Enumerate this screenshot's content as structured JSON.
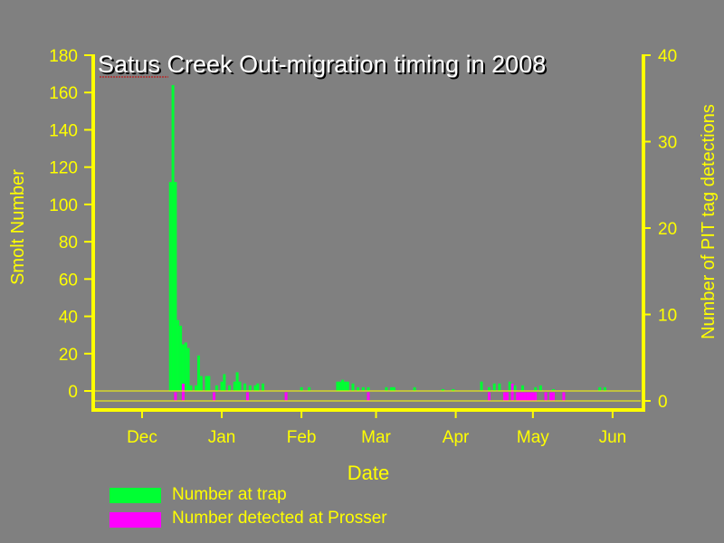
{
  "colors": {
    "background": "#808080",
    "axis": "#ffff00",
    "trap": "#00ff33",
    "prosser": "#ff00ff",
    "title_text": "#ffffff"
  },
  "chart_data": {
    "type": "bar",
    "title": "Satus Creek Out-migration timing in 2008",
    "xlabel": "Date",
    "ylabel": "Smolt Number",
    "y2label": "Number of PIT tag detections",
    "ylim": [
      0,
      180
    ],
    "y2lim": [
      0,
      40
    ],
    "yticks": [
      0,
      20,
      40,
      60,
      80,
      100,
      120,
      140,
      160,
      180
    ],
    "y2ticks": [
      0,
      10,
      20,
      30,
      40
    ],
    "x_tick_labels": [
      "Dec",
      "Jan",
      "Feb",
      "Mar",
      "Apr",
      "May",
      "Jun"
    ],
    "x_tick_days": [
      0,
      31,
      62,
      91,
      122,
      152,
      183
    ],
    "x_range_days": [
      -19,
      195
    ],
    "grid": false,
    "legend_position": "bottom-left",
    "series": [
      {
        "name": "Number at trap",
        "axis": "left",
        "color": "#00ff33",
        "points": [
          [
            11,
            112
          ],
          [
            12,
            164
          ],
          [
            13,
            112
          ],
          [
            14,
            38
          ],
          [
            15,
            35
          ],
          [
            16,
            25
          ],
          [
            17,
            26
          ],
          [
            18,
            23
          ],
          [
            19,
            3
          ],
          [
            21,
            3
          ],
          [
            22,
            19
          ],
          [
            23,
            8
          ],
          [
            25,
            8
          ],
          [
            26,
            8
          ],
          [
            29,
            3
          ],
          [
            31,
            5
          ],
          [
            32,
            9
          ],
          [
            34,
            3
          ],
          [
            36,
            5
          ],
          [
            37,
            10
          ],
          [
            38,
            5
          ],
          [
            40,
            4
          ],
          [
            42,
            3
          ],
          [
            44,
            3
          ],
          [
            45,
            4
          ],
          [
            47,
            4
          ],
          [
            62,
            2
          ],
          [
            65,
            2
          ],
          [
            76,
            5
          ],
          [
            77,
            5
          ],
          [
            78,
            6
          ],
          [
            79,
            5
          ],
          [
            80,
            5
          ],
          [
            82,
            4
          ],
          [
            84,
            2
          ],
          [
            86,
            2
          ],
          [
            88,
            2
          ],
          [
            95,
            2
          ],
          [
            97,
            2
          ],
          [
            98,
            2
          ],
          [
            106,
            2
          ],
          [
            117,
            1
          ],
          [
            121,
            1
          ],
          [
            132,
            5
          ],
          [
            135,
            2
          ],
          [
            137,
            4
          ],
          [
            139,
            4
          ],
          [
            143,
            5
          ],
          [
            145,
            3
          ],
          [
            148,
            3
          ],
          [
            153,
            2
          ],
          [
            155,
            3
          ],
          [
            160,
            1
          ],
          [
            178,
            2
          ],
          [
            180,
            2
          ]
        ]
      },
      {
        "name": "Number detected at Prosser",
        "axis": "right",
        "color": "#ff00ff",
        "points": [
          [
            13,
            1
          ],
          [
            16,
            2
          ],
          [
            28,
            1
          ],
          [
            41,
            1
          ],
          [
            56,
            1
          ],
          [
            88,
            1
          ],
          [
            135,
            1
          ],
          [
            141,
            1
          ],
          [
            142,
            1
          ],
          [
            144,
            2
          ],
          [
            146,
            1
          ],
          [
            147,
            1
          ],
          [
            148,
            1
          ],
          [
            149,
            1
          ],
          [
            150,
            1
          ],
          [
            151,
            1
          ],
          [
            152,
            1
          ],
          [
            153,
            1
          ],
          [
            157,
            1
          ],
          [
            159,
            1
          ],
          [
            160,
            1
          ],
          [
            164,
            1
          ]
        ]
      }
    ]
  }
}
